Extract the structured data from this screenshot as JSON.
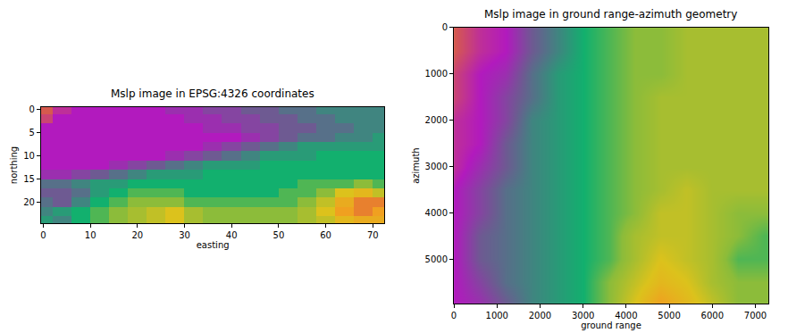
{
  "chart_data": [
    {
      "type": "heatmap",
      "title": "Mslp image in EPSG:4326 coordinates",
      "x_label": "easting",
      "y_label": "northing",
      "x": [
        0,
        4,
        8,
        12,
        16,
        20,
        24,
        28,
        32,
        36,
        40,
        44,
        48,
        52,
        56,
        60,
        64,
        68,
        72
      ],
      "y": [
        0,
        2,
        4,
        6,
        8,
        10,
        12,
        14,
        16,
        18,
        20,
        22,
        24
      ],
      "z": [
        [
          1000,
          1002,
          1003,
          1003,
          1003,
          1003,
          1003,
          1004,
          1004,
          1005,
          1005,
          1006,
          1006,
          1007,
          1007,
          1008,
          1008,
          1008,
          1008
        ],
        [
          1001,
          1003,
          1003,
          1003,
          1003,
          1003,
          1003,
          1003,
          1004,
          1004,
          1005,
          1005,
          1006,
          1006,
          1007,
          1007,
          1008,
          1008,
          1008
        ],
        [
          1003,
          1003,
          1003,
          1003,
          1003,
          1003,
          1003,
          1003,
          1003,
          1004,
          1004,
          1005,
          1005,
          1006,
          1006,
          1007,
          1007,
          1008,
          1008
        ],
        [
          1003,
          1003,
          1003,
          1003,
          1003,
          1003,
          1003,
          1003,
          1003,
          1003,
          1003,
          1004,
          1005,
          1006,
          1007,
          1007,
          1008,
          1008,
          1009
        ],
        [
          1003,
          1003,
          1003,
          1003,
          1003,
          1003,
          1003,
          1003,
          1003,
          1004,
          1005,
          1006,
          1007,
          1008,
          1009,
          1009,
          1009,
          1009,
          1009
        ],
        [
          1003,
          1003,
          1003,
          1003,
          1003,
          1003,
          1003,
          1004,
          1005,
          1006,
          1007,
          1008,
          1009,
          1009,
          1009,
          1010,
          1010,
          1010,
          1010
        ],
        [
          1003,
          1003,
          1003,
          1003,
          1004,
          1005,
          1006,
          1007,
          1008,
          1009,
          1009,
          1009,
          1010,
          1010,
          1010,
          1010,
          1010,
          1010,
          1010
        ],
        [
          1004,
          1004,
          1005,
          1006,
          1007,
          1008,
          1009,
          1009,
          1009,
          1010,
          1010,
          1010,
          1010,
          1010,
          1010,
          1010,
          1010,
          1010,
          1010
        ],
        [
          1007,
          1007,
          1008,
          1009,
          1009,
          1010,
          1010,
          1010,
          1010,
          1010,
          1010,
          1010,
          1010,
          1010,
          1011,
          1011,
          1011,
          1012,
          1011
        ],
        [
          1006,
          1006,
          1007,
          1009,
          1010,
          1011,
          1011,
          1011,
          1010,
          1010,
          1010,
          1010,
          1010,
          1011,
          1011,
          1012,
          1015,
          1016,
          1014
        ],
        [
          1007,
          1006,
          1008,
          1010,
          1011,
          1012,
          1012,
          1012,
          1011,
          1011,
          1011,
          1011,
          1011,
          1011,
          1012,
          1014,
          1017,
          1019,
          1019
        ],
        [
          1008,
          1009,
          1010,
          1011,
          1012,
          1013,
          1014,
          1015,
          1013,
          1012,
          1012,
          1012,
          1012,
          1012,
          1013,
          1015,
          1018,
          1019,
          1018
        ],
        [
          1009,
          1008,
          1010,
          1011,
          1012,
          1013,
          1014,
          1015,
          1013,
          1012,
          1012,
          1012,
          1012,
          1012,
          1013,
          1014,
          1016,
          1017,
          1017
        ]
      ],
      "zlim": [
        1000,
        1020
      ],
      "xlim": [
        -0.5,
        72.5
      ],
      "ylim": [
        24.5,
        -0.5
      ],
      "xticks": [
        0,
        10,
        20,
        30,
        40,
        50,
        60,
        70
      ],
      "yticks": [
        0,
        5,
        10,
        15,
        20
      ]
    },
    {
      "type": "heatmap",
      "title": "Mslp image in ground range-azimuth geometry",
      "x_label": "ground range",
      "y_label": "azimuth",
      "x": [
        0,
        600,
        1200,
        1800,
        2400,
        3000,
        3600,
        4200,
        4800,
        5400,
        6000,
        6600,
        7200
      ],
      "y": [
        0,
        500,
        1000,
        1500,
        2000,
        2500,
        3000,
        3500,
        4000,
        4500,
        5000,
        5500,
        6000
      ],
      "z": [
        [
          1000,
          1002,
          1003,
          1006,
          1008,
          1010,
          1011,
          1012,
          1012,
          1013,
          1013,
          1013,
          1013
        ],
        [
          1000,
          1002,
          1003,
          1006,
          1008,
          1010,
          1011,
          1012,
          1012,
          1013,
          1013,
          1013,
          1013
        ],
        [
          1001,
          1003,
          1004,
          1007,
          1009,
          1010,
          1011,
          1012,
          1012,
          1013,
          1013,
          1013,
          1013
        ],
        [
          1001,
          1003,
          1005,
          1007,
          1009,
          1010,
          1011,
          1012,
          1013,
          1013,
          1013,
          1013,
          1013
        ],
        [
          1002,
          1003,
          1005,
          1008,
          1009,
          1010,
          1011,
          1012,
          1013,
          1013,
          1013,
          1013,
          1013
        ],
        [
          1002,
          1003,
          1006,
          1008,
          1009,
          1010,
          1011,
          1012,
          1013,
          1013,
          1013,
          1013,
          1013
        ],
        [
          1002,
          1004,
          1006,
          1008,
          1009,
          1010,
          1011,
          1012,
          1013,
          1013,
          1013,
          1013,
          1013
        ],
        [
          1003,
          1005,
          1007,
          1008,
          1009,
          1010,
          1011,
          1012,
          1013,
          1014,
          1013,
          1013,
          1013
        ],
        [
          1003,
          1005,
          1007,
          1008,
          1009,
          1010,
          1011,
          1012,
          1014,
          1014,
          1013,
          1012,
          1012
        ],
        [
          1003,
          1006,
          1007,
          1008,
          1009,
          1010,
          1011,
          1013,
          1014,
          1014,
          1013,
          1012,
          1011
        ],
        [
          1003,
          1006,
          1007,
          1008,
          1009,
          1010,
          1011,
          1013,
          1015,
          1014,
          1013,
          1011,
          1011
        ],
        [
          1003,
          1005,
          1007,
          1008,
          1009,
          1010,
          1012,
          1014,
          1016,
          1015,
          1013,
          1012,
          1012
        ],
        [
          1003,
          1004,
          1006,
          1008,
          1009,
          1010,
          1012,
          1015,
          1018,
          1016,
          1014,
          1012,
          1012
        ]
      ],
      "zlim": [
        1000,
        1020
      ],
      "xlim": [
        0,
        7300
      ],
      "ylim": [
        5960,
        0
      ],
      "xticks": [
        0,
        1000,
        2000,
        3000,
        4000,
        5000,
        6000,
        7000
      ],
      "yticks": [
        0,
        1000,
        2000,
        3000,
        4000,
        5000
      ]
    }
  ]
}
